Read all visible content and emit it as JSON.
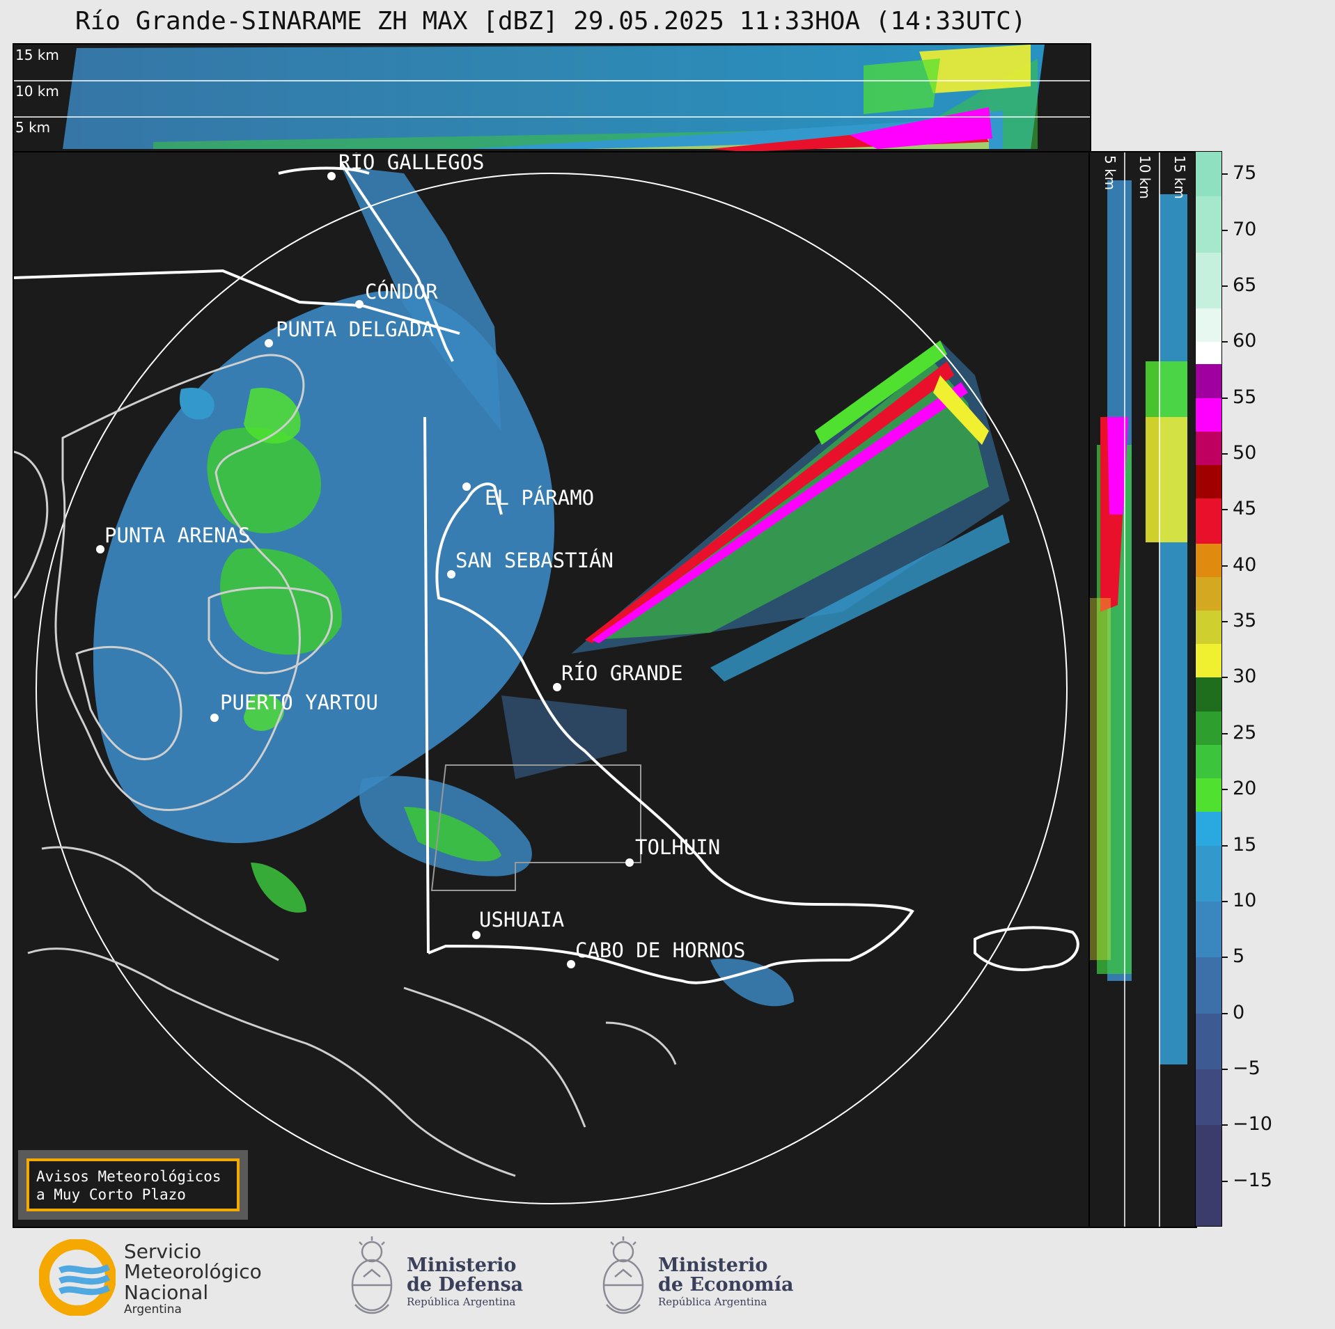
{
  "title": "Río Grande-SINARAME ZH MAX [dBZ] 29.05.2025 11:33HOA (14:33UTC)",
  "height_labels": {
    "top": [
      "15 km",
      "10 km",
      "5 km"
    ],
    "side": [
      "5 km",
      "10 km",
      "15 km"
    ]
  },
  "cities": [
    {
      "name": "RÍO GALLEGOS"
    },
    {
      "name": "CÓNDOR"
    },
    {
      "name": "PUNTA DELGADA"
    },
    {
      "name": "EL PÁRAMO"
    },
    {
      "name": "PUNTA ARENAS"
    },
    {
      "name": "SAN SEBASTIÁN"
    },
    {
      "name": "RÍO GRANDE"
    },
    {
      "name": "PUERTO YARTOU"
    },
    {
      "name": "TOLHUIN"
    },
    {
      "name": "USHUAIA"
    },
    {
      "name": "CABO DE HORNOS"
    }
  ],
  "colorbar": {
    "unit": "dBZ",
    "ticks": [
      "75",
      "70",
      "65",
      "60",
      "55",
      "50",
      "45",
      "40",
      "35",
      "30",
      "25",
      "20",
      "15",
      "10",
      "5",
      "0",
      "−5",
      "−10",
      "−15"
    ],
    "segments": [
      {
        "from": 73,
        "to": 77,
        "color": "#8fe0c0"
      },
      {
        "from": 68,
        "to": 73,
        "color": "#a6e8cc"
      },
      {
        "from": 63,
        "to": 68,
        "color": "#c6f0de"
      },
      {
        "from": 60,
        "to": 63,
        "color": "#e6f8f0"
      },
      {
        "from": 58,
        "to": 60,
        "color": "#ffffff"
      },
      {
        "from": 55,
        "to": 58,
        "color": "#a000a0"
      },
      {
        "from": 52,
        "to": 55,
        "color": "#ff00ff"
      },
      {
        "from": 49,
        "to": 52,
        "color": "#c00060"
      },
      {
        "from": 46,
        "to": 49,
        "color": "#a00000"
      },
      {
        "from": 42,
        "to": 46,
        "color": "#e8102a"
      },
      {
        "from": 39,
        "to": 42,
        "color": "#e08a10"
      },
      {
        "from": 36,
        "to": 39,
        "color": "#d4a820"
      },
      {
        "from": 33,
        "to": 36,
        "color": "#cfcf30"
      },
      {
        "from": 30,
        "to": 33,
        "color": "#f0f030"
      },
      {
        "from": 27,
        "to": 30,
        "color": "#1e6e1e"
      },
      {
        "from": 24,
        "to": 27,
        "color": "#2e9e2e"
      },
      {
        "from": 21,
        "to": 24,
        "color": "#3cc43c"
      },
      {
        "from": 18,
        "to": 21,
        "color": "#50e030"
      },
      {
        "from": 15,
        "to": 18,
        "color": "#2aa8e0"
      },
      {
        "from": 10,
        "to": 15,
        "color": "#3399cc"
      },
      {
        "from": 5,
        "to": 10,
        "color": "#3a86bf"
      },
      {
        "from": 0,
        "to": 5,
        "color": "#3d70a8"
      },
      {
        "from": -5,
        "to": 0,
        "color": "#3e5a92"
      },
      {
        "from": -10,
        "to": -5,
        "color": "#3f4a80"
      },
      {
        "from": -19,
        "to": -10,
        "color": "#3b3c6c"
      }
    ]
  },
  "warning_box": {
    "line1": "Avisos Meteorológicos",
    "line2": "a Muy Corto Plazo",
    "border_color": "#f2a900"
  },
  "logos": {
    "smn": {
      "line1": "Servicio",
      "line2": "Meteorológico",
      "line3": "Nacional",
      "line4": "Argentina"
    },
    "defensa": {
      "line1": "Ministerio",
      "line2": "de Defensa",
      "line3": "República Argentina"
    },
    "economia": {
      "line1": "Ministerio",
      "line2": "de Economía",
      "line3": "República Argentina"
    }
  }
}
